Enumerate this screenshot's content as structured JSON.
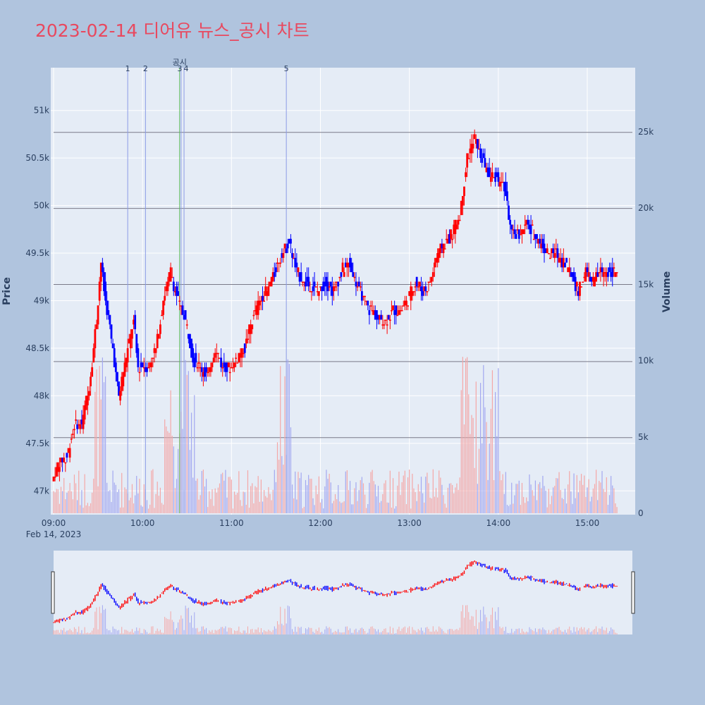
{
  "chart_data": {
    "type": "candlestick",
    "title": "2023-02-14 디어유 뉴스_공시 차트",
    "x_axis": {
      "ticks": [
        "09:00",
        "10:00",
        "11:00",
        "12:00",
        "13:00",
        "14:00",
        "15:00"
      ],
      "date_label": "Feb 14, 2023",
      "range": [
        "09:00",
        "15:30"
      ]
    },
    "y_axis_left": {
      "label": "Price",
      "ticks": [
        "47k",
        "47.5k",
        "48k",
        "48.5k",
        "49k",
        "49.5k",
        "50k",
        "50.5k",
        "51k"
      ],
      "tick_values": [
        47000,
        47500,
        48000,
        48500,
        49000,
        49500,
        50000,
        50500,
        51000
      ],
      "range": [
        46750,
        51450
      ]
    },
    "y_axis_right": {
      "label": "Volume",
      "ticks": [
        "0",
        "5k",
        "10k",
        "15k",
        "20k",
        "25k"
      ],
      "tick_values": [
        0,
        5000,
        10000,
        15000,
        20000,
        25000
      ],
      "range": [
        0,
        29200
      ]
    },
    "events": [
      {
        "label": "1",
        "time": "09:50"
      },
      {
        "label": "2",
        "time": "10:02"
      },
      {
        "label": "공시",
        "time": "10:25"
      },
      {
        "label": "3",
        "time": "10:26"
      },
      {
        "label": "4",
        "time": "10:28"
      },
      {
        "label": "5",
        "time": "11:37"
      }
    ],
    "horizontal_lines": [
      47560,
      48360,
      49170,
      49970,
      50770
    ],
    "price_path": [
      [
        "09:00",
        47100
      ],
      [
        "09:05",
        47300
      ],
      [
        "09:10",
        47350
      ],
      [
        "09:15",
        47700
      ],
      [
        "09:20",
        47700
      ],
      [
        "09:25",
        48100
      ],
      [
        "09:30",
        48800
      ],
      [
        "09:33",
        49400
      ],
      [
        "09:36",
        49000
      ],
      [
        "09:40",
        48600
      ],
      [
        "09:45",
        48000
      ],
      [
        "09:50",
        48400
      ],
      [
        "09:55",
        48800
      ],
      [
        "09:58",
        48300
      ],
      [
        "10:05",
        48300
      ],
      [
        "10:10",
        48500
      ],
      [
        "10:15",
        49000
      ],
      [
        "10:20",
        49300
      ],
      [
        "10:25",
        49000
      ],
      [
        "10:30",
        48800
      ],
      [
        "10:35",
        48400
      ],
      [
        "10:40",
        48300
      ],
      [
        "10:45",
        48200
      ],
      [
        "10:50",
        48500
      ],
      [
        "10:55",
        48300
      ],
      [
        "11:00",
        48300
      ],
      [
        "11:05",
        48400
      ],
      [
        "11:10",
        48500
      ],
      [
        "11:15",
        48800
      ],
      [
        "11:20",
        49000
      ],
      [
        "11:25",
        49100
      ],
      [
        "11:30",
        49300
      ],
      [
        "11:35",
        49500
      ],
      [
        "11:40",
        49600
      ],
      [
        "11:45",
        49300
      ],
      [
        "11:50",
        49200
      ],
      [
        "12:00",
        49100
      ],
      [
        "12:05",
        49200
      ],
      [
        "12:10",
        49100
      ],
      [
        "12:15",
        49300
      ],
      [
        "12:20",
        49400
      ],
      [
        "12:25",
        49200
      ],
      [
        "12:30",
        49000
      ],
      [
        "12:35",
        48900
      ],
      [
        "12:40",
        48800
      ],
      [
        "12:45",
        48800
      ],
      [
        "12:50",
        48900
      ],
      [
        "12:55",
        48900
      ],
      [
        "13:00",
        49000
      ],
      [
        "13:05",
        49200
      ],
      [
        "13:10",
        49100
      ],
      [
        "13:15",
        49200
      ],
      [
        "13:20",
        49500
      ],
      [
        "13:25",
        49600
      ],
      [
        "13:30",
        49700
      ],
      [
        "13:35",
        49900
      ],
      [
        "13:40",
        50500
      ],
      [
        "13:45",
        50700
      ],
      [
        "13:50",
        50500
      ],
      [
        "13:55",
        50300
      ],
      [
        "14:00",
        50300
      ],
      [
        "14:05",
        50200
      ],
      [
        "14:10",
        49700
      ],
      [
        "14:15",
        49700
      ],
      [
        "14:20",
        49800
      ],
      [
        "14:25",
        49700
      ],
      [
        "14:30",
        49600
      ],
      [
        "14:35",
        49500
      ],
      [
        "14:40",
        49500
      ],
      [
        "14:45",
        49400
      ],
      [
        "14:50",
        49300
      ],
      [
        "14:55",
        49100
      ],
      [
        "15:00",
        49300
      ],
      [
        "15:05",
        49200
      ],
      [
        "15:10",
        49300
      ],
      [
        "15:15",
        49300
      ],
      [
        "15:20",
        49300
      ]
    ],
    "up_color": "#ff0000",
    "down_color": "#0000ff",
    "volume_up_color": "#f4a7a7",
    "volume_down_color": "#a3a8f0",
    "event_line_color": "#8c9be6",
    "disclosure_line_color": "#5cb85c",
    "plot_bg": "#e5ecf6",
    "paper_bg": "#b0c4de"
  }
}
